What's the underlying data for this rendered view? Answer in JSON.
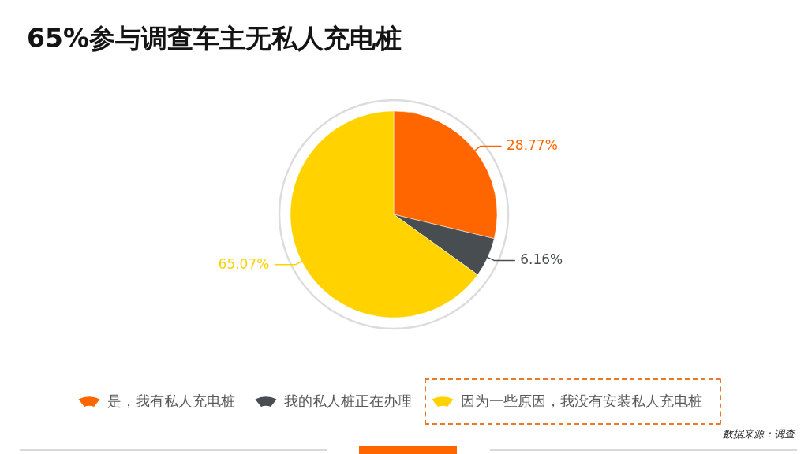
{
  "chart_data": {
    "type": "pie",
    "title": "65%参与调查车主无私人充电桩",
    "categories": [
      "是，我有私人充电桩",
      "我的私人桩正在办理",
      "因为一些原因，我没有安装私人充电桩"
    ],
    "values": [
      28.77,
      6.16,
      65.07
    ],
    "colors": [
      "#ff6600",
      "#484d51",
      "#ffd200"
    ],
    "value_labels": [
      "28.77%",
      "6.16%",
      "65.07%"
    ],
    "legend": "bottom",
    "annotations": [
      "数据来源：调查"
    ]
  }
}
